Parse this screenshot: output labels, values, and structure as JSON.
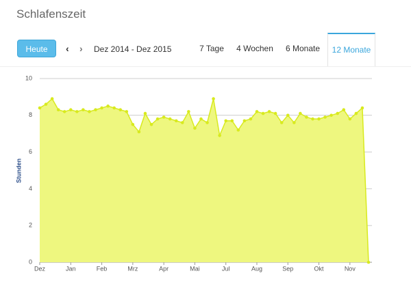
{
  "header": {
    "title": "Schlafenszeit"
  },
  "controls": {
    "today_button": "Heute",
    "range": "Dez 2014 - Dez 2015",
    "tabs": [
      "7 Tage",
      "4 Wochen",
      "6 Monate",
      "12 Monate"
    ],
    "active_tab": 3
  },
  "chart_data": {
    "type": "area",
    "y_label": "Stunden",
    "categories": [
      "Dez",
      null,
      null,
      null,
      null,
      "Jan",
      null,
      null,
      null,
      null,
      "Feb",
      null,
      null,
      null,
      null,
      "Mrz",
      null,
      null,
      null,
      null,
      "Apr",
      null,
      null,
      null,
      null,
      "Mai",
      null,
      null,
      null,
      null,
      "Jul",
      null,
      null,
      null,
      null,
      "Aug",
      null,
      null,
      null,
      null,
      "Sep",
      null,
      null,
      null,
      null,
      "Okt",
      null,
      null,
      null,
      null,
      "Nov",
      null,
      null,
      null
    ],
    "values": [
      8.4,
      8.6,
      8.9,
      8.3,
      8.2,
      8.3,
      8.2,
      8.3,
      8.2,
      8.3,
      8.4,
      8.5,
      8.4,
      8.3,
      8.2,
      7.5,
      7.1,
      8.1,
      7.5,
      7.8,
      7.9,
      7.8,
      7.7,
      7.6,
      8.2,
      7.3,
      7.8,
      7.6,
      8.9,
      6.9,
      7.7,
      7.7,
      7.2,
      7.7,
      7.8,
      8.2,
      8.1,
      8.2,
      8.1,
      7.6,
      8.0,
      7.6,
      8.1,
      7.9,
      7.8,
      7.8,
      7.9,
      8.0,
      8.1,
      8.3,
      7.8,
      8.1,
      8.4,
      0
    ],
    "color": "#d8ea1e",
    "fill": "#eef77f",
    "ylim": [
      0,
      10
    ],
    "yticks": [
      0,
      2,
      4,
      6,
      8,
      10
    ],
    "grid": true
  }
}
